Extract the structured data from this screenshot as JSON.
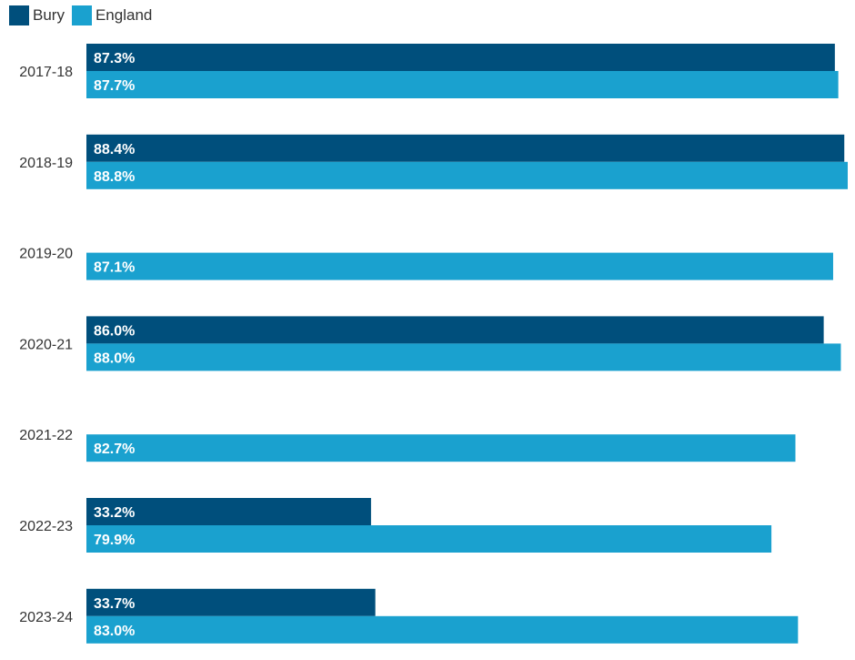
{
  "chart_data": {
    "type": "bar",
    "orientation": "horizontal",
    "categories": [
      "2017-18",
      "2018-19",
      "2019-20",
      "2020-21",
      "2021-22",
      "2022-23",
      "2023-24"
    ],
    "series": [
      {
        "name": "Bury",
        "color": "#004f7c",
        "values": [
          87.3,
          88.4,
          null,
          86.0,
          null,
          33.2,
          33.7
        ],
        "labels": [
          "87.3%",
          "88.4%",
          "",
          "86.0%",
          "",
          "33.2%",
          "33.7%"
        ]
      },
      {
        "name": "England",
        "color": "#1aa1cf",
        "values": [
          87.7,
          88.8,
          87.1,
          88.0,
          82.7,
          79.9,
          83.0
        ],
        "labels": [
          "87.7%",
          "88.8%",
          "87.1%",
          "88.0%",
          "82.7%",
          "79.9%",
          "83.0%"
        ]
      }
    ],
    "legend_position": "top-left",
    "grid": false,
    "xlim": [
      0,
      88.8
    ]
  }
}
